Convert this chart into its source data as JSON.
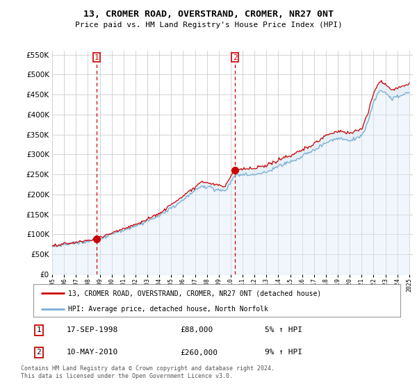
{
  "title": "13, CROMER ROAD, OVERSTRAND, CROMER, NR27 0NT",
  "subtitle": "Price paid vs. HM Land Registry's House Price Index (HPI)",
  "legend_line1": "13, CROMER ROAD, OVERSTRAND, CROMER, NR27 0NT (detached house)",
  "legend_line2": "HPI: Average price, detached house, North Norfolk",
  "sale1_date": "17-SEP-1998",
  "sale1_price": "£88,000",
  "sale1_hpi": "5% ↑ HPI",
  "sale2_date": "10-MAY-2010",
  "sale2_price": "£260,000",
  "sale2_hpi": "9% ↑ HPI",
  "footer": "Contains HM Land Registry data © Crown copyright and database right 2024.\nThis data is licensed under the Open Government Licence v3.0.",
  "sale_color": "#cc0000",
  "hpi_color": "#7aadd4",
  "fill_color": "#daeaf5",
  "vline_color": "#cc0000",
  "background_color": "#ffffff",
  "grid_color": "#cccccc",
  "ylim": [
    0,
    560000
  ],
  "yticks": [
    0,
    50000,
    100000,
    150000,
    200000,
    250000,
    300000,
    350000,
    400000,
    450000,
    500000,
    550000
  ],
  "sale1_x": 1998.72,
  "sale1_y": 88000,
  "sale2_x": 2010.37,
  "sale2_y": 260000,
  "xmin": 1995,
  "xmax": 2025.3
}
